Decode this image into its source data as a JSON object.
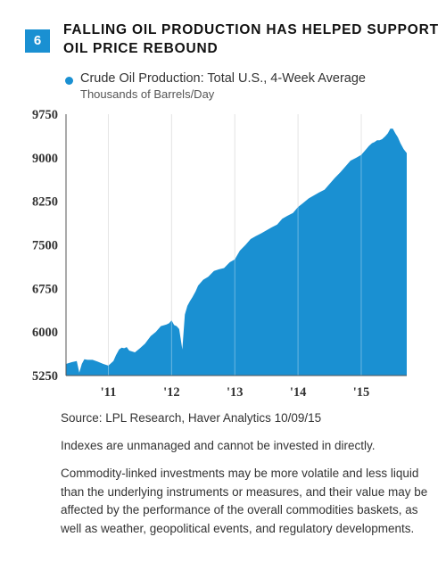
{
  "figure_number": "6",
  "title_lines": [
    "FALLING OIL PRODUCTION HAS HELPED SUPPORT",
    "OIL PRICE REBOUND"
  ],
  "legend": {
    "series": "Crude Oil Production: Total U.S., 4-Week Average",
    "unit": "Thousands of Barrels/Day"
  },
  "footer": {
    "source": "Source: LPL Research, Haver Analytics   10/09/15",
    "note1": "Indexes are unmanaged and cannot be invested in directly.",
    "note2": "Commodity-linked investments may be more volatile and less liquid than the underlying instruments or measures, and their value may be affected by the performance of the overall commodities baskets, as well  as weather, geopolitical events, and regulatory developments."
  },
  "colors": {
    "area": "#1a90d2",
    "badge": "#1a90d2",
    "axis": "#555555"
  },
  "chart_data": {
    "type": "area",
    "series": [
      {
        "name": "Crude Oil Production: Total U.S., 4-Week Average",
        "x": [
          2010.33,
          2010.42,
          2010.5,
          2010.54,
          2010.58,
          2010.62,
          2010.67,
          2010.75,
          2010.83,
          2010.92,
          2011.0,
          2011.08,
          2011.12,
          2011.17,
          2011.21,
          2011.25,
          2011.29,
          2011.33,
          2011.42,
          2011.5,
          2011.58,
          2011.67,
          2011.75,
          2011.83,
          2011.92,
          2011.96,
          2012.0,
          2012.04,
          2012.08,
          2012.12,
          2012.17,
          2012.21,
          2012.25,
          2012.29,
          2012.33,
          2012.38,
          2012.42,
          2012.46,
          2012.5,
          2012.58,
          2012.67,
          2012.75,
          2012.83,
          2012.92,
          2013.0,
          2013.08,
          2013.17,
          2013.25,
          2013.33,
          2013.42,
          2013.5,
          2013.58,
          2013.67,
          2013.75,
          2013.83,
          2013.92,
          2014.0,
          2014.08,
          2014.17,
          2014.25,
          2014.33,
          2014.42,
          2014.5,
          2014.58,
          2014.67,
          2014.75,
          2014.83,
          2014.92,
          2015.0,
          2015.04,
          2015.08,
          2015.12,
          2015.17,
          2015.21,
          2015.25,
          2015.29,
          2015.33,
          2015.38,
          2015.42,
          2015.46,
          2015.5,
          2015.54,
          2015.58,
          2015.62,
          2015.67,
          2015.72
        ],
        "values": [
          5450,
          5480,
          5500,
          5300,
          5450,
          5530,
          5520,
          5520,
          5490,
          5450,
          5420,
          5500,
          5600,
          5700,
          5730,
          5720,
          5740,
          5680,
          5650,
          5720,
          5800,
          5930,
          6000,
          6100,
          6130,
          6150,
          6200,
          6120,
          6100,
          6050,
          5700,
          6300,
          6450,
          6530,
          6600,
          6700,
          6800,
          6850,
          6900,
          6950,
          7050,
          7080,
          7100,
          7200,
          7250,
          7400,
          7500,
          7600,
          7650,
          7700,
          7750,
          7800,
          7850,
          7950,
          8000,
          8050,
          8150,
          8220,
          8300,
          8350,
          8400,
          8450,
          8550,
          8650,
          8750,
          8850,
          8950,
          9000,
          9050,
          9100,
          9150,
          9200,
          9250,
          9270,
          9300,
          9300,
          9320,
          9370,
          9420,
          9500,
          9500,
          9420,
          9350,
          9250,
          9150,
          9080
        ]
      }
    ],
    "xlabels": [
      "'11",
      "'12",
      "'13",
      "'14",
      "'15"
    ],
    "xticks": [
      2011,
      2012,
      2013,
      2014,
      2015
    ],
    "xlim": [
      2010.33,
      2015.72
    ],
    "yticks": [
      5250,
      6000,
      6750,
      7500,
      8250,
      9000,
      9750
    ],
    "ylim": [
      5250,
      9750
    ],
    "grid": true
  }
}
